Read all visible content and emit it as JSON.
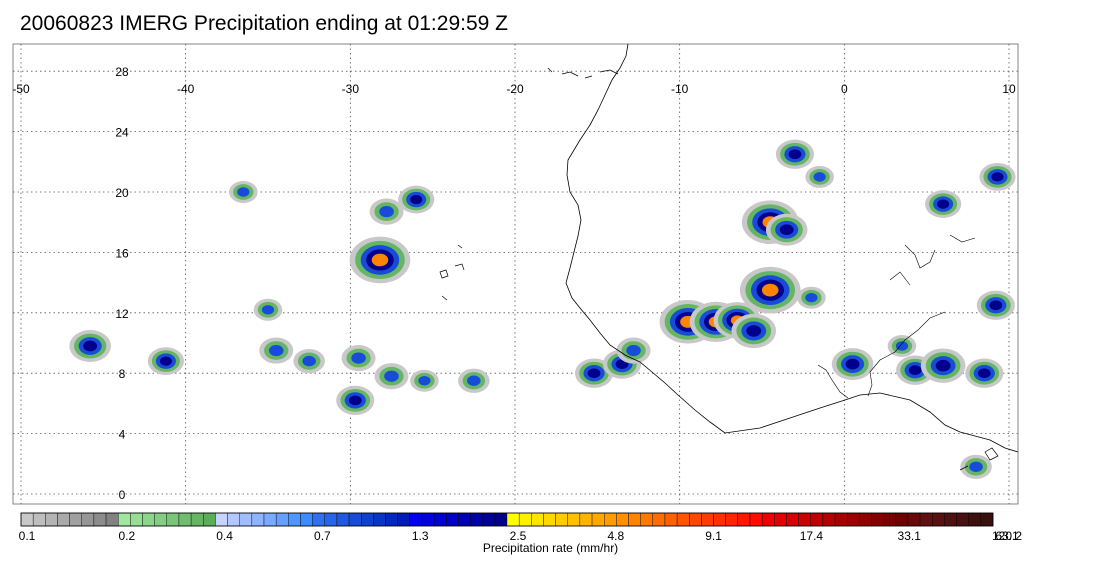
{
  "title": "20060823 IMERG Precipitation ending at 01:29:59 Z",
  "map": {
    "lon_range": [
      -50,
      10
    ],
    "lat_range": [
      -0.5,
      29.5
    ],
    "lon_ticks": [
      "-50",
      "-40",
      "-30",
      "-20",
      "-10",
      "0",
      "10"
    ],
    "lon_tick_values": [
      -50,
      -40,
      -30,
      -20,
      -10,
      0,
      10
    ],
    "lat_ticks": [
      "28",
      "24",
      "20",
      "16",
      "12",
      "8",
      "4",
      "0"
    ],
    "lat_tick_values": [
      28,
      24,
      20,
      16,
      12,
      8,
      4,
      0
    ],
    "grid_lines": "dotted"
  },
  "colorbar": {
    "title": "Precipitation rate (mm/hr)",
    "labels": [
      "0.1",
      "0.2",
      "0.4",
      "0.7",
      "1.3",
      "2.5",
      "4.8",
      "9.1",
      "17.4",
      "33.1",
      "63.1",
      "120.2"
    ],
    "colors": [
      "#c8c8c8",
      "#bebebe",
      "#b4b4b4",
      "#aaaaaa",
      "#a0a0a0",
      "#969696",
      "#8c8c8c",
      "#828282",
      "#a0e6a0",
      "#96de96",
      "#8cd68c",
      "#82ce82",
      "#78c678",
      "#6ebe6e",
      "#64b664",
      "#5aae5a",
      "#c8d2ff",
      "#b4c8ff",
      "#a0beff",
      "#8cb4ff",
      "#78aaff",
      "#64a0ff",
      "#5096ff",
      "#3c8cff",
      "#3070f0",
      "#2864e8",
      "#2058e0",
      "#184cd8",
      "#1040d0",
      "#0834c8",
      "#0028c0",
      "#001cb8",
      "#0000f0",
      "#0000e0",
      "#0000d0",
      "#0000c8",
      "#0000b8",
      "#0000a8",
      "#000098",
      "#00008c",
      "#ffff00",
      "#fff000",
      "#ffe400",
      "#ffd800",
      "#ffcc00",
      "#ffc000",
      "#ffb400",
      "#ffa800",
      "#ff9c00",
      "#ff9000",
      "#ff8400",
      "#ff7800",
      "#ff6c00",
      "#ff6000",
      "#ff5400",
      "#ff4800",
      "#ff3c00",
      "#ff3000",
      "#ff2400",
      "#ff1800",
      "#ff0c00",
      "#f00000",
      "#e40000",
      "#d80000",
      "#cc0000",
      "#c00000",
      "#b40000",
      "#a80000",
      "#9c0000",
      "#900000",
      "#840000",
      "#780000",
      "#700000",
      "#680808",
      "#601010",
      "#581010",
      "#501010",
      "#481010",
      "#401010",
      "#381010"
    ]
  },
  "precip_cells": [
    {
      "lon": -28.2,
      "lat": 15.5,
      "rate": 12.0
    },
    {
      "lon": -45.8,
      "lat": 9.8,
      "rate": 4.0
    },
    {
      "lon": -41.2,
      "lat": 8.8,
      "rate": 2.5
    },
    {
      "lon": -34.5,
      "lat": 9.5,
      "rate": 2.0
    },
    {
      "lon": -32.5,
      "lat": 8.8,
      "rate": 1.5
    },
    {
      "lon": -29.5,
      "lat": 9.0,
      "rate": 2.0
    },
    {
      "lon": -29.7,
      "lat": 6.2,
      "rate": 3.0
    },
    {
      "lon": -27.5,
      "lat": 7.8,
      "rate": 2.0
    },
    {
      "lon": -25.5,
      "lat": 7.5,
      "rate": 1.0
    },
    {
      "lon": -22.5,
      "lat": 7.5,
      "rate": 1.5
    },
    {
      "lon": -26.0,
      "lat": 19.5,
      "rate": 2.5
    },
    {
      "lon": -27.8,
      "lat": 18.7,
      "rate": 2.0
    },
    {
      "lon": -35.0,
      "lat": 12.2,
      "rate": 1.0
    },
    {
      "lon": -36.5,
      "lat": 20.0,
      "rate": 1.0
    },
    {
      "lon": -15.2,
      "lat": 8.0,
      "rate": 3.0
    },
    {
      "lon": -13.5,
      "lat": 8.6,
      "rate": 3.0
    },
    {
      "lon": -12.8,
      "lat": 9.5,
      "rate": 2.0
    },
    {
      "lon": -9.5,
      "lat": 11.4,
      "rate": 10.0
    },
    {
      "lon": -7.8,
      "lat": 11.4,
      "rate": 8.0
    },
    {
      "lon": -6.5,
      "lat": 11.5,
      "rate": 6.0
    },
    {
      "lon": -5.5,
      "lat": 10.8,
      "rate": 5.0
    },
    {
      "lon": -4.5,
      "lat": 13.5,
      "rate": 12.0
    },
    {
      "lon": -4.5,
      "lat": 18.0,
      "rate": 10.0
    },
    {
      "lon": -3.5,
      "lat": 17.5,
      "rate": 4.0
    },
    {
      "lon": -3.0,
      "lat": 22.5,
      "rate": 3.0
    },
    {
      "lon": -1.5,
      "lat": 21.0,
      "rate": 1.0
    },
    {
      "lon": 0.5,
      "lat": 8.6,
      "rate": 4.0
    },
    {
      "lon": 4.3,
      "lat": 8.2,
      "rate": 3.0
    },
    {
      "lon": 6.0,
      "lat": 8.5,
      "rate": 5.0
    },
    {
      "lon": 8.5,
      "lat": 8.0,
      "rate": 3.0
    },
    {
      "lon": 9.2,
      "lat": 12.5,
      "rate": 3.0
    },
    {
      "lon": 6.0,
      "lat": 19.2,
      "rate": 2.5
    },
    {
      "lon": 9.3,
      "lat": 21.0,
      "rate": 2.5
    },
    {
      "lon": 8.0,
      "lat": 1.8,
      "rate": 1.5
    },
    {
      "lon": -2.0,
      "lat": 13.0,
      "rate": 1.0
    },
    {
      "lon": 3.5,
      "lat": 9.8,
      "rate": 1.0
    }
  ]
}
